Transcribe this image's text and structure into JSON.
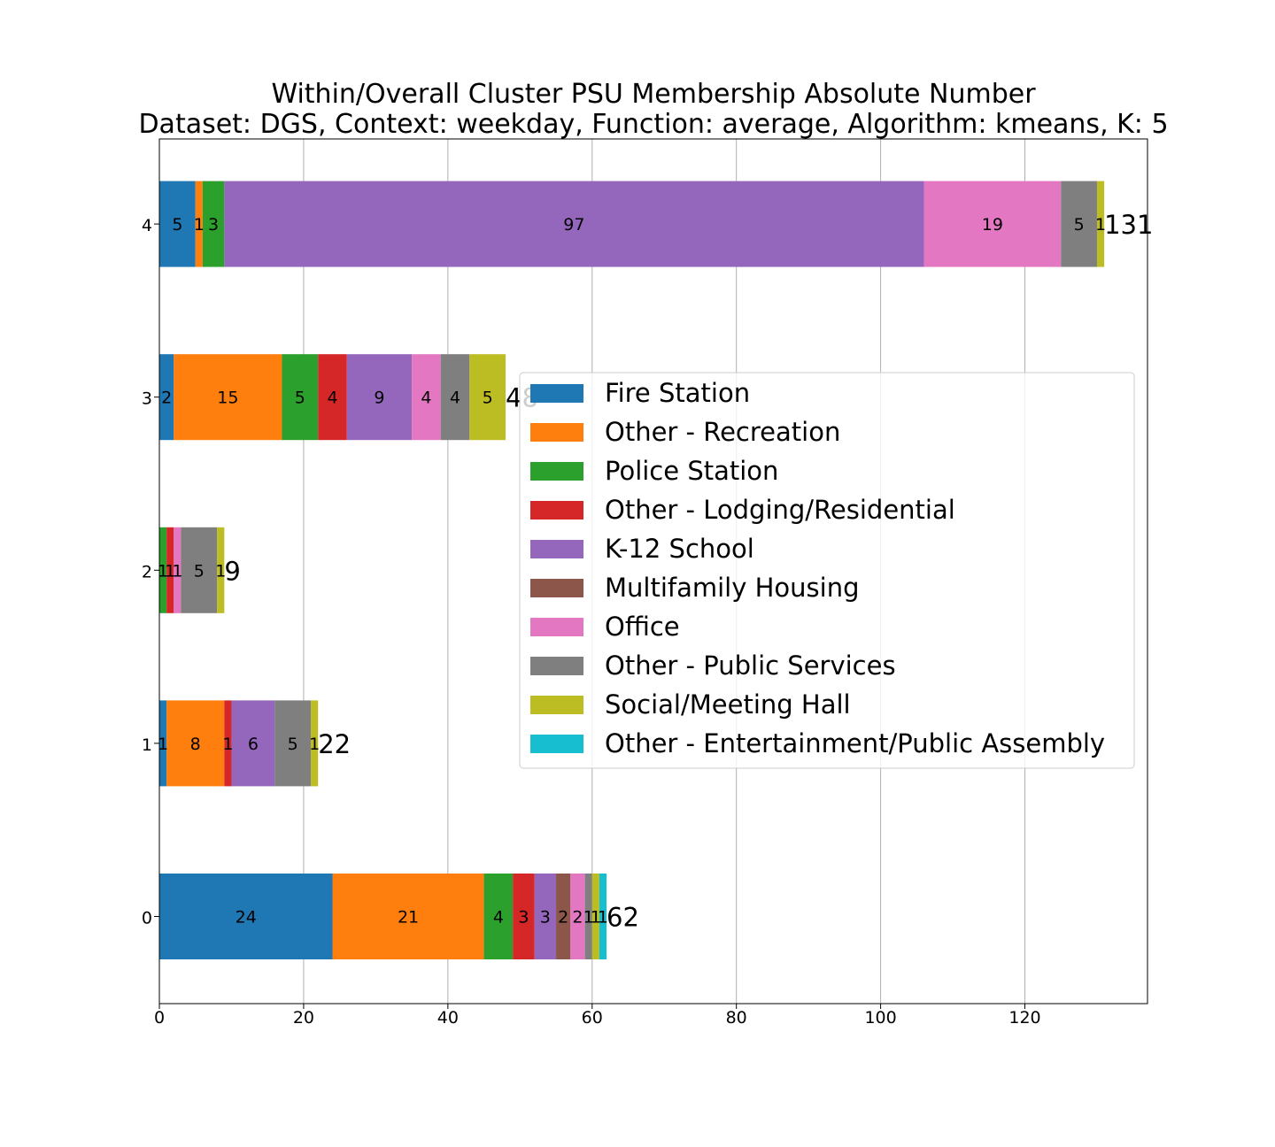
{
  "chart_data": {
    "type": "bar",
    "orientation": "horizontal",
    "stacked": true,
    "title": "Within/Overall Cluster PSU Membership Absolute Number",
    "subtitle": "Dataset: DGS, Context: weekday, Function: average, Algorithm: kmeans, K: 5",
    "xlabel": "",
    "ylabel": "",
    "xlim": [
      0,
      137
    ],
    "xticks": [
      0,
      20,
      40,
      60,
      80,
      100,
      120
    ],
    "grid": "vertical",
    "legend_position": "right",
    "categories": [
      "0",
      "1",
      "2",
      "3",
      "4"
    ],
    "totals": [
      62,
      22,
      9,
      48,
      131
    ],
    "series": [
      {
        "name": "Fire Station",
        "color": "#1f77b4",
        "values": [
          24,
          1,
          0,
          2,
          5
        ]
      },
      {
        "name": "Other - Recreation",
        "color": "#ff7f0e",
        "values": [
          21,
          8,
          0,
          15,
          1
        ]
      },
      {
        "name": "Police Station",
        "color": "#2ca02c",
        "values": [
          4,
          0,
          1,
          5,
          3
        ]
      },
      {
        "name": "Other - Lodging/Residential",
        "color": "#d62728",
        "values": [
          3,
          1,
          1,
          4,
          0
        ]
      },
      {
        "name": "K-12 School",
        "color": "#9467bd",
        "values": [
          3,
          6,
          0,
          9,
          97
        ]
      },
      {
        "name": "Multifamily Housing",
        "color": "#8c564b",
        "values": [
          2,
          0,
          0,
          0,
          0
        ]
      },
      {
        "name": "Office",
        "color": "#e377c2",
        "values": [
          2,
          0,
          1,
          4,
          19
        ]
      },
      {
        "name": "Other - Public Services",
        "color": "#7f7f7f",
        "values": [
          1,
          5,
          5,
          4,
          5
        ]
      },
      {
        "name": "Social/Meeting Hall",
        "color": "#bcbd22",
        "values": [
          1,
          1,
          1,
          5,
          1
        ]
      },
      {
        "name": "Other - Entertainment/Public Assembly",
        "color": "#17becf",
        "values": [
          1,
          0,
          0,
          0,
          0
        ]
      }
    ]
  }
}
